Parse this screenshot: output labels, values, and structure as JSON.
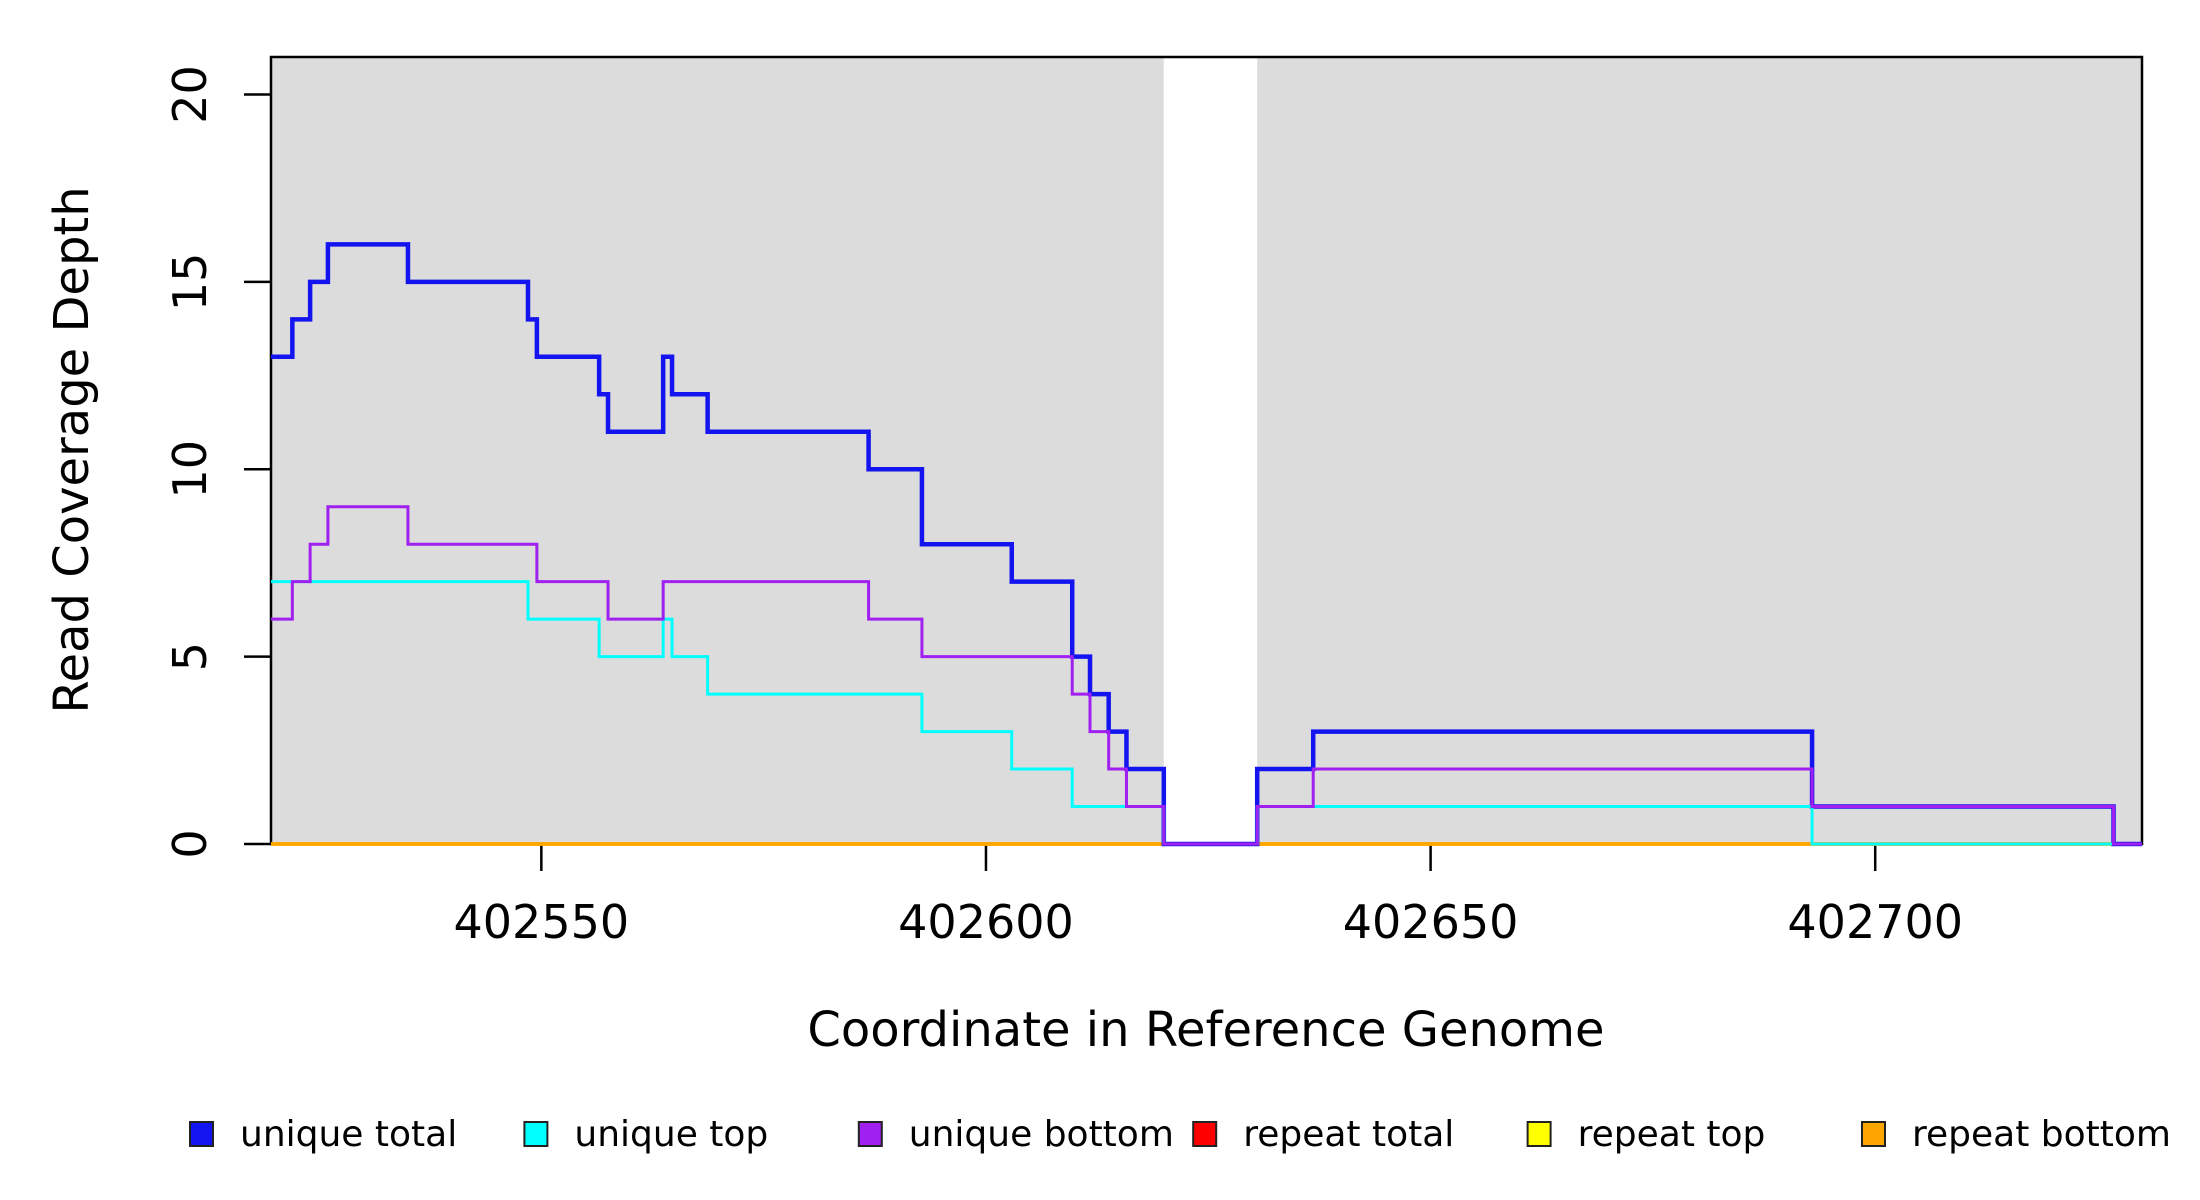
{
  "figure": {
    "background": "#ffffff",
    "panel_background": "#DCDCDC"
  },
  "axes": {
    "x": {
      "title": "Coordinate in Reference Genome",
      "range": [
        402519.6,
        402730.0
      ],
      "ticks": [
        402550,
        402600,
        402650,
        402700
      ],
      "tick_labels": [
        "402550",
        "402600",
        "402650",
        "402700"
      ]
    },
    "y": {
      "title": "Read Coverage Depth",
      "range": [
        0,
        21
      ],
      "ticks": [
        0,
        5,
        10,
        15,
        20
      ],
      "tick_labels": [
        "0",
        "5",
        "10",
        "15",
        "20"
      ]
    }
  },
  "chart_data": {
    "type": "line",
    "subtype": "step-after",
    "title": "",
    "xlabel": "Coordinate in Reference Genome",
    "ylabel": "Read Coverage Depth",
    "xlim": [
      402519.6,
      402730.0
    ],
    "ylim": [
      0,
      21
    ],
    "grid": false,
    "legend_position": "bottom",
    "regions": [
      {
        "name": "covered-region-left",
        "x0": 402519.6,
        "x1": 402620.0,
        "color": "#DCDCDC"
      },
      {
        "name": "alignment-gap",
        "x0": 402620.0,
        "x1": 402630.5,
        "color": "#FFFFFF"
      },
      {
        "name": "covered-region-right",
        "x0": 402630.5,
        "x1": 402730.0,
        "color": "#DCDCDC"
      }
    ],
    "series": [
      {
        "name": "repeat total",
        "color": "#FF0000",
        "line_width": 3.5,
        "points": [
          [
            402519.6,
            0
          ],
          [
            402730.0,
            0
          ]
        ]
      },
      {
        "name": "repeat top",
        "color": "#FFFF00",
        "line_width": 3.5,
        "points": [
          [
            402519.6,
            0
          ],
          [
            402730.0,
            0
          ]
        ]
      },
      {
        "name": "repeat bottom",
        "color": "#FFA500",
        "line_width": 3.5,
        "points": [
          [
            402519.6,
            0
          ],
          [
            402730.0,
            0
          ]
        ]
      },
      {
        "name": "unique total",
        "color": "#1414F0",
        "line_width": 4.5,
        "points": [
          [
            402519.6,
            13
          ],
          [
            402522,
            14
          ],
          [
            402524,
            15
          ],
          [
            402526,
            16
          ],
          [
            402535,
            15
          ],
          [
            402548.5,
            14
          ],
          [
            402549.5,
            13
          ],
          [
            402556.5,
            12
          ],
          [
            402557.5,
            11
          ],
          [
            402563.7,
            13
          ],
          [
            402564.7,
            12
          ],
          [
            402568.7,
            11
          ],
          [
            402586.8,
            10
          ],
          [
            402592.8,
            8
          ],
          [
            402602.9,
            7
          ],
          [
            402609.7,
            5
          ],
          [
            402611.7,
            4
          ],
          [
            402613.8,
            3
          ],
          [
            402615.8,
            2
          ],
          [
            402620,
            0
          ],
          [
            402630.5,
            2
          ],
          [
            402636.8,
            3
          ],
          [
            402692.9,
            1
          ],
          [
            402726.8,
            0
          ],
          [
            402730.0,
            0
          ]
        ]
      },
      {
        "name": "unique top",
        "color": "#00FFFF",
        "line_width": 3,
        "points": [
          [
            402519.6,
            7
          ],
          [
            402548.5,
            6
          ],
          [
            402556.5,
            5
          ],
          [
            402563.7,
            6
          ],
          [
            402564.7,
            5
          ],
          [
            402568.7,
            4
          ],
          [
            402592.8,
            3
          ],
          [
            402602.9,
            2
          ],
          [
            402609.7,
            1
          ],
          [
            402620,
            0
          ],
          [
            402630.5,
            1
          ],
          [
            402692.9,
            0
          ],
          [
            402730.0,
            0
          ]
        ]
      },
      {
        "name": "unique bottom",
        "color": "#A020F0",
        "line_width": 3,
        "points": [
          [
            402519.6,
            6
          ],
          [
            402522,
            7
          ],
          [
            402524,
            8
          ],
          [
            402526,
            9
          ],
          [
            402535,
            8
          ],
          [
            402549.5,
            7
          ],
          [
            402557.5,
            6
          ],
          [
            402563.7,
            7
          ],
          [
            402586.8,
            6
          ],
          [
            402592.8,
            5
          ],
          [
            402609.7,
            4
          ],
          [
            402611.7,
            3
          ],
          [
            402613.8,
            2
          ],
          [
            402615.8,
            1
          ],
          [
            402620,
            0
          ],
          [
            402630.5,
            1
          ],
          [
            402636.8,
            2
          ],
          [
            402692.9,
            1
          ],
          [
            402726.8,
            0
          ],
          [
            402730.0,
            0
          ]
        ]
      }
    ],
    "legend": [
      {
        "label": "unique total",
        "color": "#1414F0"
      },
      {
        "label": "unique top",
        "color": "#00FFFF"
      },
      {
        "label": "unique bottom",
        "color": "#A020F0"
      },
      {
        "label": "repeat total",
        "color": "#FF0000"
      },
      {
        "label": "repeat top",
        "color": "#FFFF00"
      },
      {
        "label": "repeat bottom",
        "color": "#FFA500"
      }
    ]
  }
}
